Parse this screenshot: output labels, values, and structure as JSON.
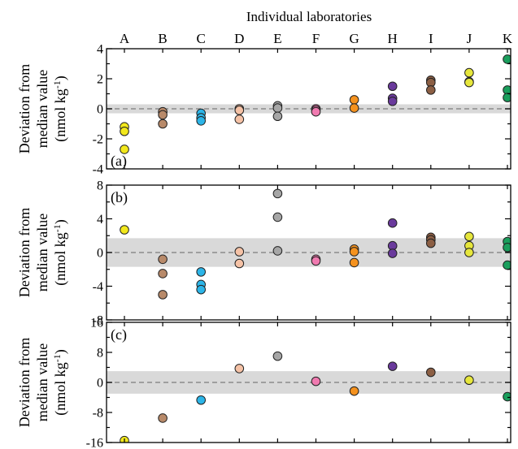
{
  "chart_data": [
    {
      "type": "scatter",
      "panel_label": "(a)",
      "top_title": "Individual laboratories",
      "categories": [
        "A",
        "B",
        "C",
        "D",
        "E",
        "F",
        "G",
        "H",
        "I",
        "J",
        "K"
      ],
      "ylabel_line1": "Deviation from",
      "ylabel_line2": "median value",
      "ylabel_line3_pre": "(nmol kg",
      "ylabel_line3_sup": "-1",
      "ylabel_line3_post": ")",
      "ylim": [
        -4,
        4
      ],
      "yticks": [
        -4,
        -2,
        0,
        2,
        4
      ],
      "band": [
        -0.3,
        0.3
      ],
      "median_line": 0,
      "grid": false,
      "series": [
        {
          "category": "A",
          "color": "#f2e81c",
          "values": [
            -1.2,
            -1.5,
            -2.7
          ]
        },
        {
          "category": "B",
          "color": "#b88a6a",
          "values": [
            -0.2,
            -0.4,
            -1.0
          ]
        },
        {
          "category": "C",
          "color": "#2cb5e8",
          "values": [
            -0.3,
            -0.6,
            -0.8
          ]
        },
        {
          "category": "D",
          "color": "#f5c2a6",
          "values": [
            0.0,
            -0.1,
            -0.7
          ]
        },
        {
          "category": "E",
          "color": "#a6a6a6",
          "values": [
            0.2,
            0.05,
            -0.5
          ]
        },
        {
          "category": "F",
          "color": "#f07ab0",
          "values": [
            0.0,
            -0.1,
            -0.2
          ]
        },
        {
          "category": "G",
          "color": "#f5921e",
          "values": [
            0.6,
            0.05
          ]
        },
        {
          "category": "H",
          "color": "#6a3a9c",
          "values": [
            1.5,
            0.7,
            0.5
          ]
        },
        {
          "category": "I",
          "color": "#8c5f44",
          "values": [
            1.9,
            1.75,
            1.25
          ]
        },
        {
          "category": "J",
          "color": "#e6e63c",
          "values": [
            2.4,
            1.8,
            1.75
          ]
        },
        {
          "category": "K",
          "color": "#1a9e5c",
          "values": [
            3.3,
            1.25,
            0.75
          ]
        }
      ]
    },
    {
      "type": "scatter",
      "panel_label": "(b)",
      "categories": [
        "A",
        "B",
        "C",
        "D",
        "E",
        "F",
        "G",
        "H",
        "I",
        "J",
        "K"
      ],
      "ylabel_line1": "Deviation from",
      "ylabel_line2": "median value",
      "ylabel_line3_pre": "(nmol kg",
      "ylabel_line3_sup": "-1",
      "ylabel_line3_post": ")",
      "ylim": [
        -8,
        8
      ],
      "yticks": [
        -8,
        -4,
        0,
        4,
        8
      ],
      "band": [
        -1.7,
        1.7
      ],
      "median_line": 0,
      "grid": false,
      "series": [
        {
          "category": "A",
          "color": "#f2e81c",
          "values": [
            2.7
          ]
        },
        {
          "category": "B",
          "color": "#b88a6a",
          "values": [
            -0.8,
            -2.5,
            -5.0
          ]
        },
        {
          "category": "C",
          "color": "#2cb5e8",
          "values": [
            -2.3,
            -3.8,
            -4.4
          ]
        },
        {
          "category": "D",
          "color": "#f5c2a6",
          "values": [
            0.1,
            -1.3
          ]
        },
        {
          "category": "E",
          "color": "#a6a6a6",
          "values": [
            7.0,
            4.2,
            0.2
          ]
        },
        {
          "category": "F",
          "color": "#f07ab0",
          "values": [
            -0.8,
            -1.0
          ]
        },
        {
          "category": "G",
          "color": "#f5921e",
          "values": [
            0.4,
            0.1,
            -1.2
          ]
        },
        {
          "category": "H",
          "color": "#6a3a9c",
          "values": [
            3.5,
            0.8,
            -0.1
          ]
        },
        {
          "category": "I",
          "color": "#8c5f44",
          "values": [
            1.8,
            1.5,
            1.1
          ]
        },
        {
          "category": "J",
          "color": "#e6e63c",
          "values": [
            1.9,
            0.8,
            0.0
          ]
        },
        {
          "category": "K",
          "color": "#1a9e5c",
          "values": [
            1.3,
            0.6,
            -1.5
          ]
        }
      ]
    },
    {
      "type": "scatter",
      "panel_label": "(c)",
      "categories": [
        "A",
        "B",
        "C",
        "D",
        "E",
        "F",
        "G",
        "H",
        "I",
        "J",
        "K"
      ],
      "ylabel_line1": "Deviation from",
      "ylabel_line2": "median value",
      "ylabel_line3_pre": "(nmol kg",
      "ylabel_line3_sup": "-1",
      "ylabel_line3_post": ")",
      "ylim": [
        -16,
        16
      ],
      "yticks": [
        -16,
        -8,
        0,
        8,
        16
      ],
      "band": [
        -3,
        3
      ],
      "median_line": 0,
      "grid": false,
      "series": [
        {
          "category": "A",
          "color": "#f2e81c",
          "values": [
            -15.5
          ]
        },
        {
          "category": "B",
          "color": "#b88a6a",
          "values": [
            -9.5
          ]
        },
        {
          "category": "C",
          "color": "#2cb5e8",
          "values": [
            -4.7
          ]
        },
        {
          "category": "D",
          "color": "#f5c2a6",
          "values": [
            3.7
          ]
        },
        {
          "category": "E",
          "color": "#a6a6a6",
          "values": [
            7.0
          ]
        },
        {
          "category": "F",
          "color": "#f07ab0",
          "values": [
            0.3
          ]
        },
        {
          "category": "G",
          "color": "#f5921e",
          "values": [
            -2.3
          ]
        },
        {
          "category": "H",
          "color": "#6a3a9c",
          "values": [
            4.3
          ]
        },
        {
          "category": "I",
          "color": "#8c5f44",
          "values": [
            2.7
          ]
        },
        {
          "category": "J",
          "color": "#e6e63c",
          "values": [
            0.6
          ]
        },
        {
          "category": "K",
          "color": "#1a9e5c",
          "values": [
            -3.8
          ]
        }
      ]
    }
  ]
}
